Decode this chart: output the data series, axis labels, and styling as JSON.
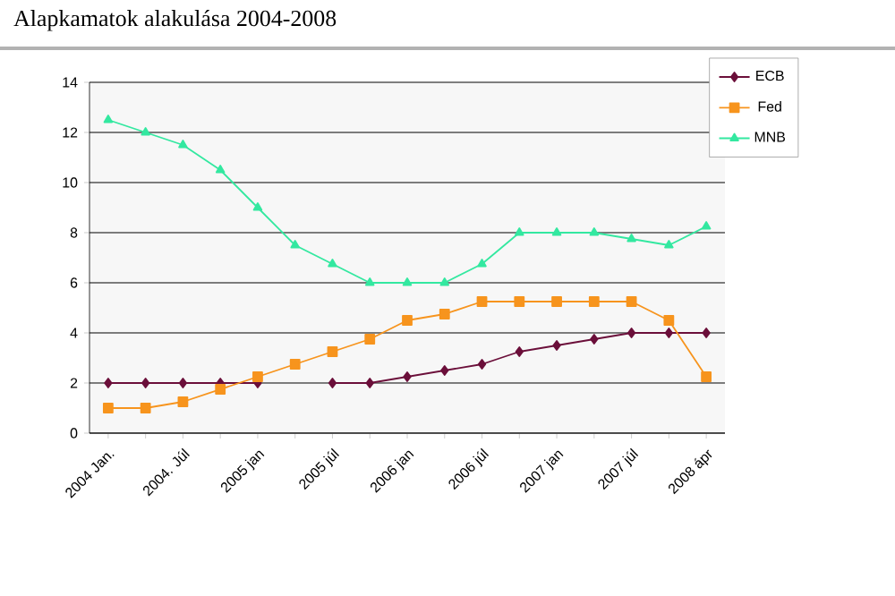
{
  "chart_data": {
    "type": "line",
    "title": "Alapkamatok alakulása 2004-2008",
    "categories": [
      "2004 Jan.",
      null,
      "2004. Júl",
      null,
      "2005 jan",
      null,
      "2005 júl",
      null,
      "2006 jan",
      null,
      "2006 júl",
      null,
      "2007 jan",
      null,
      "2007 júl",
      null,
      "2008 ápr"
    ],
    "series": [
      {
        "name": "ECB",
        "color": "#6b0f3a",
        "marker": "diamond",
        "values": [
          2,
          2,
          2,
          2,
          2,
          null,
          2,
          2,
          2.25,
          2.5,
          2.75,
          3.25,
          3.5,
          3.75,
          4,
          4,
          4
        ]
      },
      {
        "name": "Fed",
        "color": "#f7941d",
        "marker": "square",
        "values": [
          1,
          1,
          1.25,
          1.75,
          2.25,
          2.75,
          3.25,
          3.75,
          4.5,
          4.75,
          5.25,
          5.25,
          5.25,
          5.25,
          5.25,
          4.5,
          2.25
        ]
      },
      {
        "name": "MNB",
        "color": "#33e8a0",
        "marker": "triangle",
        "values": [
          12.5,
          12,
          11.5,
          10.5,
          9,
          7.5,
          6.75,
          6,
          6,
          6,
          6.75,
          8,
          8,
          8,
          7.75,
          7.5,
          8.25
        ]
      }
    ],
    "ylim": [
      0,
      14
    ],
    "yticks": [
      0,
      2,
      4,
      6,
      8,
      10,
      12,
      14
    ],
    "grid": "y",
    "legend": "top right",
    "line_style": "solid"
  }
}
